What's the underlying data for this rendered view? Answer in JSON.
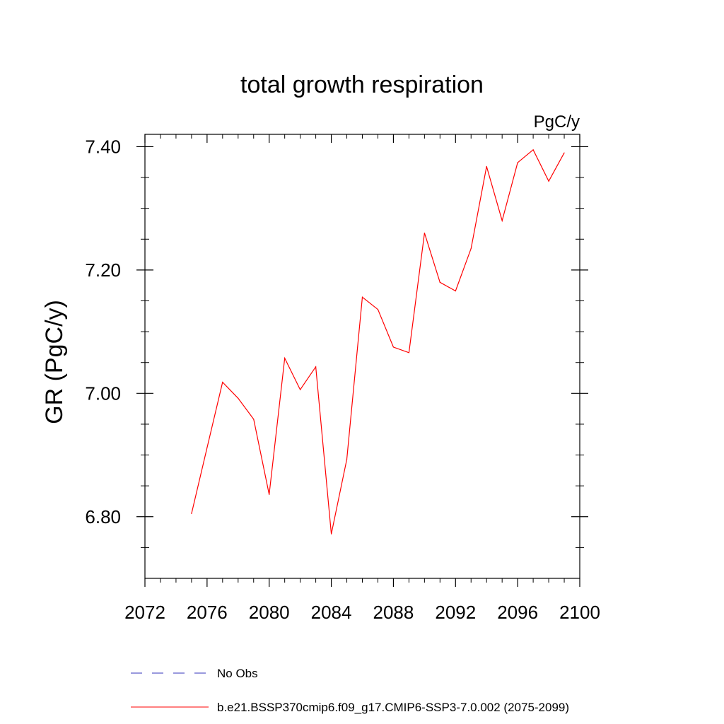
{
  "chart_data": {
    "type": "line",
    "title": "total growth respiration",
    "units": "PgC/y",
    "ylabel": "GR  (PgC/y)",
    "xlabel": "",
    "xlim": [
      2072,
      2100
    ],
    "ylim": [
      6.7,
      7.42
    ],
    "x_ticks": [
      2072,
      2076,
      2080,
      2084,
      2088,
      2092,
      2096,
      2100
    ],
    "x_tick_labels": [
      "2072",
      "2076",
      "2080",
      "2084",
      "2088",
      "2092",
      "2096",
      "2100"
    ],
    "y_ticks": [
      6.8,
      7.0,
      7.2,
      7.4
    ],
    "y_tick_labels": [
      "6.80",
      "7.00",
      "7.20",
      "7.40"
    ],
    "grid": false,
    "legend_position": "bottom",
    "series": [
      {
        "name": "No Obs",
        "color": "#3333bb",
        "dash": true,
        "x": [],
        "y": []
      },
      {
        "name": "b.e21.BSSP370cmip6.f09_g17.CMIP6-SSP3-7.0.002 (2075-2099)",
        "color": "#ff0000",
        "dash": false,
        "x": [
          2075,
          2076,
          2077,
          2078,
          2079,
          2080,
          2081,
          2082,
          2083,
          2084,
          2085,
          2086,
          2087,
          2088,
          2089,
          2090,
          2091,
          2092,
          2093,
          2094,
          2095,
          2096,
          2097,
          2098,
          2099
        ],
        "y": [
          6.805,
          6.912,
          7.018,
          6.992,
          6.958,
          6.836,
          7.057,
          7.006,
          7.043,
          6.772,
          6.893,
          7.156,
          7.136,
          7.075,
          7.066,
          7.26,
          7.18,
          7.166,
          7.235,
          7.368,
          7.28,
          7.374,
          7.395,
          7.344,
          7.39
        ]
      }
    ]
  }
}
